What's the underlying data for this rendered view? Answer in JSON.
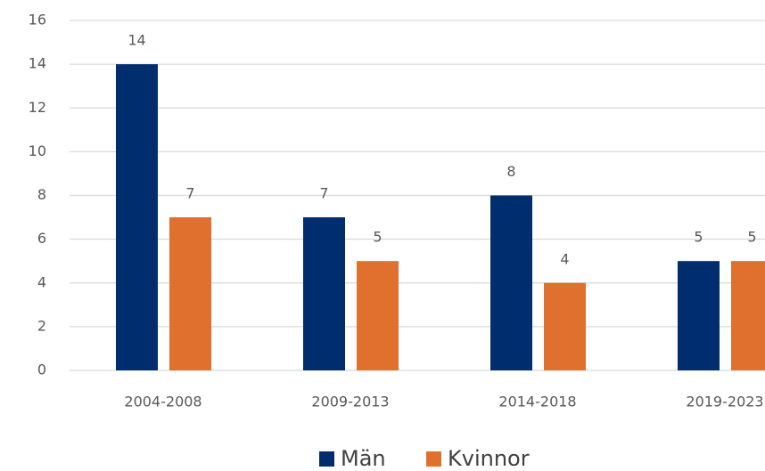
{
  "chart_data": {
    "type": "bar",
    "categories": [
      "2004-2008",
      "2009-2013",
      "2014-2018",
      "2019-2023"
    ],
    "series": [
      {
        "name": "Män",
        "color": "#002d6e",
        "values": [
          14,
          7,
          8,
          5
        ]
      },
      {
        "name": "Kvinnor",
        "color": "#e0702e",
        "values": [
          7,
          5,
          4,
          5
        ]
      }
    ],
    "ylim": [
      0,
      16
    ],
    "yticks": [
      0,
      2,
      4,
      6,
      8,
      10,
      12,
      14,
      16
    ],
    "grid": true,
    "legend": "bottom"
  }
}
